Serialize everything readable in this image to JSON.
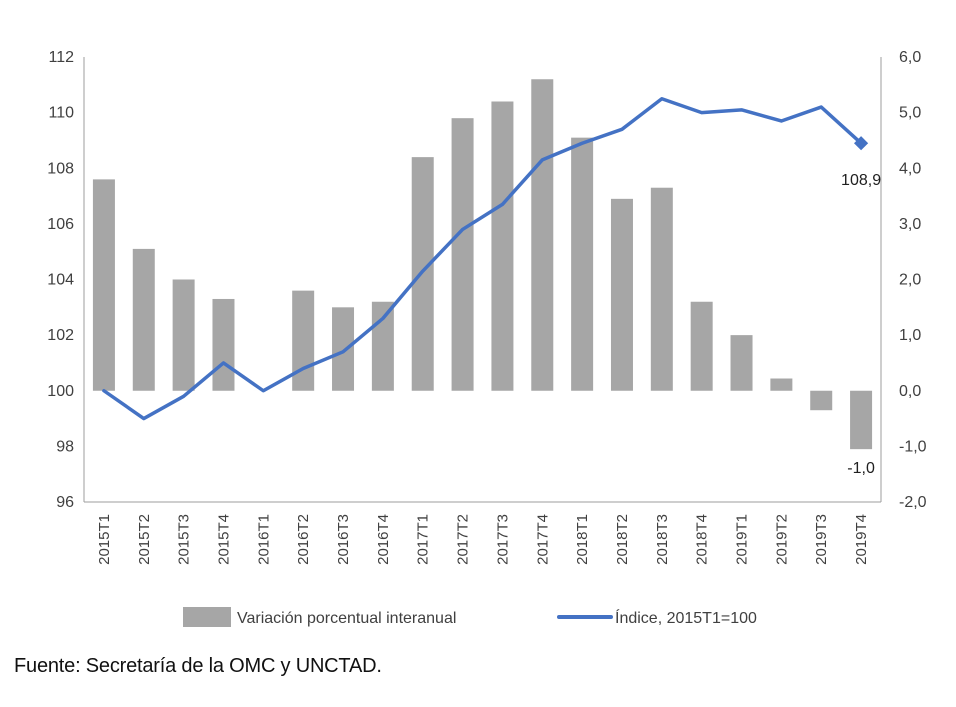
{
  "chart_data": {
    "type": "bar+line",
    "categories": [
      "2015T1",
      "2015T2",
      "2015T3",
      "2015T4",
      "2016T1",
      "2016T2",
      "2016T3",
      "2016T4",
      "2017T1",
      "2017T2",
      "2017T3",
      "2017T4",
      "2018T1",
      "2018T2",
      "2018T3",
      "2018T4",
      "2019T1",
      "2019T2",
      "2019T3",
      "2019T4"
    ],
    "series": [
      {
        "name": "Variación porcentual interanual",
        "type": "bar",
        "axis": "right",
        "color": "#a6a6a6",
        "values": [
          3.8,
          2.55,
          2.0,
          1.65,
          0.0,
          1.8,
          1.5,
          1.6,
          4.2,
          4.9,
          5.2,
          5.6,
          4.55,
          3.45,
          3.65,
          1.6,
          1.0,
          0.22,
          -0.35,
          -1.05
        ]
      },
      {
        "name": "Índice, 2015T1=100",
        "type": "line",
        "axis": "left",
        "color": "#4472c4",
        "values": [
          100.0,
          99.0,
          99.8,
          101.0,
          100.0,
          100.8,
          101.4,
          102.6,
          104.3,
          105.8,
          106.7,
          108.3,
          108.9,
          109.4,
          110.5,
          110.0,
          110.1,
          109.7,
          110.2,
          108.9
        ]
      }
    ],
    "y_left": {
      "min": 96,
      "max": 112,
      "step": 2,
      "ticks": [
        "96",
        "98",
        "100",
        "102",
        "104",
        "106",
        "108",
        "110",
        "112"
      ]
    },
    "y_right": {
      "min": -2,
      "max": 6,
      "step": 1,
      "ticks": [
        "-2,0",
        "-1,0",
        "0,0",
        "1,0",
        "2,0",
        "3,0",
        "4,0",
        "5,0",
        "6,0"
      ]
    },
    "annotations": {
      "last_line_value": "108,9",
      "last_bar_value": "-1,0"
    },
    "legend": [
      "Variación porcentual interanual",
      "Índice, 2015T1=100"
    ],
    "legend_position": "bottom",
    "grid": false
  },
  "source": "Fuente: Secretaría de la OMC y UNCTAD."
}
